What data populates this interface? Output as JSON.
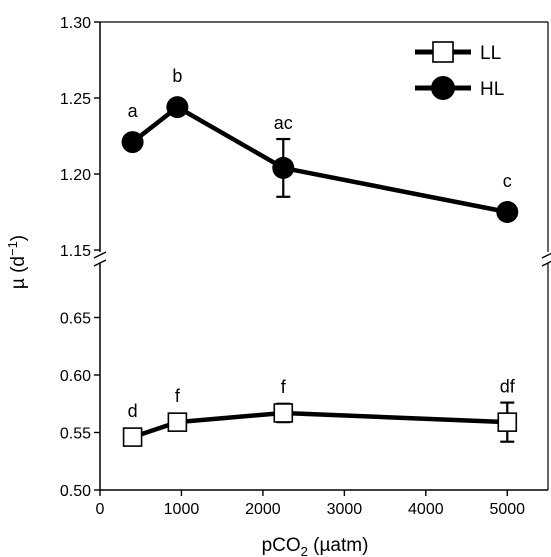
{
  "chart_data": {
    "type": "line",
    "xlabel": {
      "base": "pCO",
      "sub": "2",
      "rest": " (µatm)"
    },
    "ylabel": {
      "base": "µ (d",
      "sup": "−1",
      "rest": ")"
    },
    "xlim": [
      0,
      5500
    ],
    "x_ticks": [
      0,
      1000,
      2000,
      3000,
      4000,
      5000
    ],
    "y_upper_range": [
      1.15,
      1.3
    ],
    "y_upper_ticks": [
      "1.15",
      "1.20",
      "1.25",
      "1.30"
    ],
    "y_lower_range": [
      0.5,
      0.7
    ],
    "y_lower_ticks": [
      "0.50",
      "0.55",
      "0.60",
      "0.65"
    ],
    "axis_break": true,
    "legend_position": "top-right",
    "series": [
      {
        "name": "LL",
        "marker": "open-square",
        "points": [
          {
            "x": 400,
            "y": 0.546,
            "err": 0.006,
            "label": "d"
          },
          {
            "x": 950,
            "y": 0.559,
            "err": 0.007,
            "label": "f"
          },
          {
            "x": 2250,
            "y": 0.567,
            "err": 0.008,
            "label": "f"
          },
          {
            "x": 5000,
            "y": 0.559,
            "err": 0.017,
            "label": "df"
          }
        ]
      },
      {
        "name": "HL",
        "marker": "filled-circle",
        "points": [
          {
            "x": 400,
            "y": 1.221,
            "err": 0.0,
            "label": "a"
          },
          {
            "x": 950,
            "y": 1.244,
            "err": 0.002,
            "label": "b"
          },
          {
            "x": 2250,
            "y": 1.204,
            "err": 0.019,
            "label": "ac"
          },
          {
            "x": 5000,
            "y": 1.175,
            "err": 0.0,
            "label": "c"
          }
        ]
      }
    ]
  }
}
